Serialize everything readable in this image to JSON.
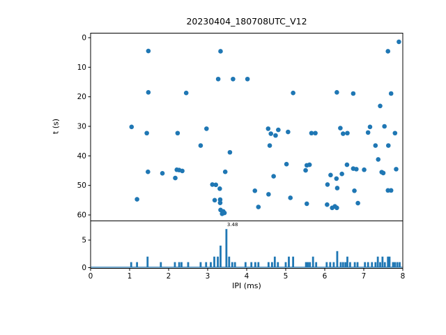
{
  "figure": {
    "title": "20230404_180708UTC_V12",
    "background": "#ffffff",
    "accent_color": "#1f77b4",
    "axis_color": "#000000"
  },
  "chart_data": [
    {
      "type": "scatter",
      "name": "pulse-times-vs-ipi",
      "title": "20230404_180708UTC_V12",
      "xlabel": "",
      "ylabel": "t (s)",
      "xlim": [
        0,
        8
      ],
      "ylim": [
        62,
        -1.5
      ],
      "y_axis_inverted": true,
      "grid": false,
      "legend": "none",
      "xticks": [
        0,
        1,
        2,
        3,
        4,
        5,
        6,
        7,
        8
      ],
      "x_tick_labels_visible": false,
      "yticks": [
        0,
        10,
        20,
        30,
        40,
        50,
        60
      ],
      "marker_color": "#1f77b4",
      "points": [
        [
          7.9,
          1.4
        ],
        [
          1.48,
          4.5
        ],
        [
          3.33,
          4.6
        ],
        [
          7.62,
          4.6
        ],
        [
          3.27,
          14.0
        ],
        [
          3.65,
          14.0
        ],
        [
          4.02,
          14.0
        ],
        [
          1.48,
          18.5
        ],
        [
          2.45,
          18.7
        ],
        [
          5.19,
          18.7
        ],
        [
          6.31,
          18.5
        ],
        [
          6.73,
          18.9
        ],
        [
          7.7,
          18.9
        ],
        [
          7.42,
          23.1
        ],
        [
          1.05,
          30.2
        ],
        [
          2.97,
          30.8
        ],
        [
          4.55,
          30.8
        ],
        [
          6.4,
          30.6
        ],
        [
          7.16,
          30.2
        ],
        [
          7.53,
          30.0
        ],
        [
          4.81,
          31.2
        ],
        [
          1.44,
          32.3
        ],
        [
          2.23,
          32.3
        ],
        [
          4.62,
          32.5
        ],
        [
          4.74,
          33.1
        ],
        [
          5.06,
          31.9
        ],
        [
          5.66,
          32.3
        ],
        [
          5.76,
          32.3
        ],
        [
          6.47,
          32.5
        ],
        [
          6.58,
          32.3
        ],
        [
          7.11,
          32.1
        ],
        [
          7.8,
          32.3
        ],
        [
          2.82,
          36.5
        ],
        [
          4.59,
          36.5
        ],
        [
          7.3,
          36.5
        ],
        [
          7.63,
          36.5
        ],
        [
          3.57,
          38.8
        ],
        [
          7.37,
          41.2
        ],
        [
          5.02,
          42.8
        ],
        [
          5.54,
          43.2
        ],
        [
          5.61,
          43.0
        ],
        [
          6.57,
          43.0
        ],
        [
          1.47,
          45.4
        ],
        [
          1.84,
          45.9
        ],
        [
          2.17,
          47.5
        ],
        [
          2.21,
          44.7
        ],
        [
          2.27,
          44.8
        ],
        [
          2.35,
          45.1
        ],
        [
          3.45,
          45.4
        ],
        [
          4.69,
          46.9
        ],
        [
          5.51,
          44.9
        ],
        [
          6.73,
          44.3
        ],
        [
          6.81,
          44.5
        ],
        [
          7.01,
          44.7
        ],
        [
          7.46,
          45.5
        ],
        [
          7.5,
          45.8
        ],
        [
          7.83,
          44.5
        ],
        [
          6.15,
          46.5
        ],
        [
          6.44,
          46.1
        ],
        [
          6.3,
          47.7
        ],
        [
          3.12,
          49.7
        ],
        [
          3.21,
          49.8
        ],
        [
          6.07,
          49.7
        ],
        [
          3.31,
          51.1
        ],
        [
          6.32,
          50.9
        ],
        [
          4.21,
          51.8
        ],
        [
          6.76,
          51.8
        ],
        [
          7.62,
          51.7
        ],
        [
          7.7,
          51.7
        ],
        [
          4.56,
          53.0
        ],
        [
          5.12,
          54.2
        ],
        [
          1.19,
          54.7
        ],
        [
          3.18,
          55.0
        ],
        [
          3.32,
          54.8
        ],
        [
          3.32,
          55.9
        ],
        [
          5.54,
          56.2
        ],
        [
          6.85,
          56.0
        ],
        [
          6.06,
          56.5
        ],
        [
          6.19,
          57.6
        ],
        [
          6.26,
          57.1
        ],
        [
          6.31,
          57.6
        ],
        [
          4.3,
          57.3
        ],
        [
          3.33,
          58.3
        ],
        [
          3.4,
          58.8
        ],
        [
          3.43,
          59.3
        ],
        [
          3.37,
          59.6
        ]
      ]
    },
    {
      "type": "bar",
      "name": "ipi-histogram",
      "xlabel": "IPI (ms)",
      "ylabel": "",
      "xlim": [
        0,
        8
      ],
      "ylim": [
        0,
        8.4
      ],
      "grid": false,
      "legend": "none",
      "xticks": [
        0,
        1,
        2,
        3,
        4,
        5,
        6,
        7,
        8
      ],
      "yticks": [
        0,
        5
      ],
      "bar_color": "#1f77b4",
      "bin_width": 0.05,
      "baseline_line": true,
      "annotation": {
        "text": "3.48",
        "x": 3.48,
        "y": 7.1
      },
      "bars": [
        [
          1.04,
          1
        ],
        [
          1.19,
          1
        ],
        [
          1.46,
          2
        ],
        [
          1.8,
          1
        ],
        [
          2.16,
          1
        ],
        [
          2.27,
          1
        ],
        [
          2.33,
          1
        ],
        [
          2.5,
          1
        ],
        [
          2.82,
          1
        ],
        [
          2.96,
          1
        ],
        [
          3.08,
          1
        ],
        [
          3.17,
          2
        ],
        [
          3.26,
          2
        ],
        [
          3.33,
          4
        ],
        [
          3.48,
          7
        ],
        [
          3.55,
          2
        ],
        [
          3.63,
          1
        ],
        [
          3.7,
          1
        ],
        [
          3.97,
          1
        ],
        [
          4.12,
          1
        ],
        [
          4.22,
          1
        ],
        [
          4.3,
          1
        ],
        [
          4.56,
          1
        ],
        [
          4.65,
          1
        ],
        [
          4.72,
          2
        ],
        [
          4.8,
          1
        ],
        [
          5.0,
          1
        ],
        [
          5.08,
          2
        ],
        [
          5.19,
          2
        ],
        [
          5.52,
          1
        ],
        [
          5.57,
          1
        ],
        [
          5.62,
          1
        ],
        [
          5.7,
          2
        ],
        [
          5.78,
          1
        ],
        [
          6.05,
          1
        ],
        [
          6.14,
          1
        ],
        [
          6.23,
          1
        ],
        [
          6.32,
          3
        ],
        [
          6.41,
          1
        ],
        [
          6.47,
          1
        ],
        [
          6.53,
          1
        ],
        [
          6.58,
          2
        ],
        [
          6.65,
          1
        ],
        [
          6.77,
          1
        ],
        [
          6.84,
          1
        ],
        [
          7.03,
          1
        ],
        [
          7.11,
          1
        ],
        [
          7.21,
          1
        ],
        [
          7.3,
          1
        ],
        [
          7.36,
          2
        ],
        [
          7.42,
          1
        ],
        [
          7.48,
          2
        ],
        [
          7.54,
          1
        ],
        [
          7.62,
          2
        ],
        [
          7.66,
          2
        ],
        [
          7.75,
          1
        ],
        [
          7.8,
          1
        ],
        [
          7.86,
          1
        ],
        [
          7.92,
          1
        ]
      ]
    }
  ]
}
